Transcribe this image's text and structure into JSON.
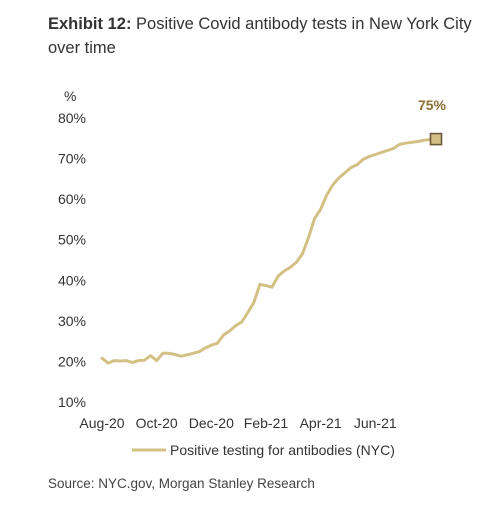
{
  "header": {
    "exhibit_label": "Exhibit 12:",
    "title": "Positive Covid antibody tests in New York City over time"
  },
  "footer": {
    "source": "Source: NYC.gov, Morgan Stanley Research"
  },
  "chart_data": {
    "type": "line",
    "title": "Positive Covid antibody tests in New York City over time",
    "ylabel": "%",
    "xlabel": "",
    "ylim": [
      10,
      80
    ],
    "yticks": [
      10,
      20,
      30,
      40,
      50,
      60,
      70,
      80
    ],
    "ytick_labels": [
      "10%",
      "20%",
      "30%",
      "40%",
      "50%",
      "60%",
      "70%",
      "80%"
    ],
    "x_tick_labels": [
      "Aug-20",
      "Oct-20",
      "Dec-20",
      "Feb-21",
      "Apr-21",
      "Jun-21"
    ],
    "x_tick_index": [
      0,
      9,
      18,
      27,
      36,
      45
    ],
    "grid": false,
    "legend": "bottom",
    "line_color": "#d4c084",
    "annotation": {
      "text": "75%",
      "index": 55,
      "value": 74.8,
      "color": "#8a6d2f",
      "marker_border": "#6b5a3a"
    },
    "series": [
      {
        "name": "Positive testing for antibodies (NYC)",
        "values": [
          20.8,
          19.6,
          20.2,
          20.1,
          20.2,
          19.7,
          20.2,
          20.3,
          21.4,
          20.2,
          22.0,
          22.0,
          21.7,
          21.3,
          21.6,
          22.0,
          22.4,
          23.3,
          24.0,
          24.5,
          26.5,
          27.5,
          28.8,
          29.7,
          32.0,
          34.5,
          39.0,
          38.7,
          38.3,
          41.0,
          42.3,
          43.2,
          44.4,
          46.5,
          50.5,
          55.2,
          57.5,
          61.0,
          63.5,
          65.2,
          66.5,
          67.8,
          68.5,
          69.8,
          70.5,
          71.0,
          71.5,
          72.0,
          72.5,
          73.5,
          73.8,
          74.0,
          74.2,
          74.5,
          74.7,
          74.8
        ]
      }
    ]
  }
}
